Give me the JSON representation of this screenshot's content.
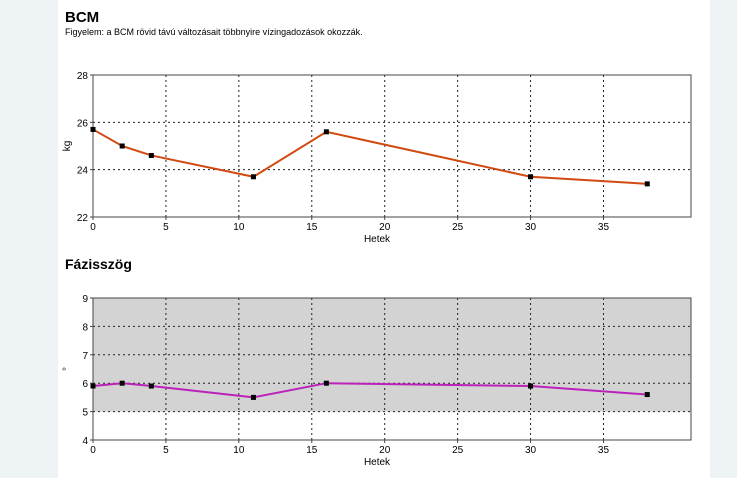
{
  "page": {
    "bcm_title": "BCM",
    "bcm_note": "Figyelem: a BCM rövid távú változásait többnyire vízingadozások okozzák.",
    "phase_title": "Fázisszög"
  },
  "chart_data": [
    {
      "type": "line",
      "title": "BCM",
      "xlabel": "Hetek",
      "ylabel": "kg",
      "xlim": [
        0,
        41
      ],
      "ylim": [
        22,
        28
      ],
      "x_ticks": [
        0,
        5,
        10,
        15,
        20,
        25,
        30,
        35
      ],
      "y_ticks": [
        22,
        24,
        26,
        28
      ],
      "grid": true,
      "line_color": "#d04a12",
      "plot_background": "#ffffff",
      "series": [
        {
          "x": [
            0,
            2,
            4,
            11,
            16,
            30,
            38
          ],
          "y": [
            25.7,
            25.0,
            24.6,
            23.7,
            25.6,
            23.7,
            23.4
          ]
        }
      ]
    },
    {
      "type": "line",
      "title": "Fázisszög",
      "xlabel": "Hetek",
      "ylabel": "°",
      "xlim": [
        0,
        41
      ],
      "ylim": [
        4,
        9
      ],
      "x_ticks": [
        0,
        5,
        10,
        15,
        20,
        25,
        30,
        35
      ],
      "y_ticks": [
        4,
        5,
        6,
        7,
        8,
        9
      ],
      "grid": true,
      "line_color": "#bb22bb",
      "plot_background": "#d3d3d3",
      "reference_band": [
        5,
        9
      ],
      "series": [
        {
          "x": [
            0,
            2,
            4,
            11,
            16,
            30,
            38
          ],
          "y": [
            5.9,
            6.0,
            5.9,
            5.5,
            6.0,
            5.9,
            5.6
          ]
        }
      ]
    }
  ]
}
